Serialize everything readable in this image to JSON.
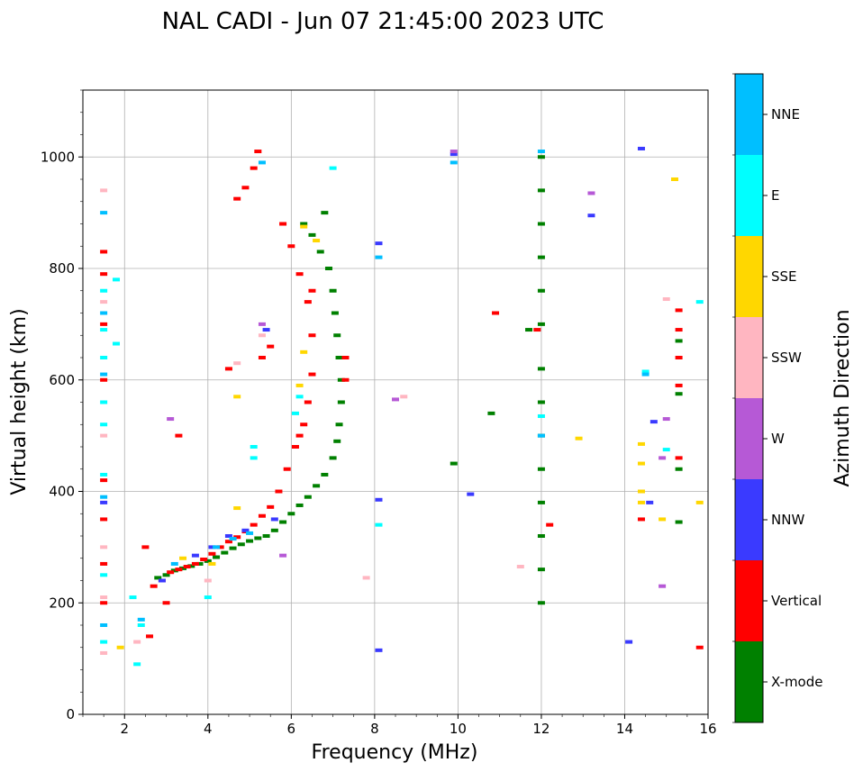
{
  "chart_data": {
    "type": "scatter",
    "title": "NAL CADI - Jun 07 21:45:00 2023 UTC",
    "xlabel": "Frequency (MHz)",
    "ylabel": "Virtual height (km)",
    "xlim": [
      1,
      16
    ],
    "ylim": [
      0,
      1120
    ],
    "xticks": [
      "2",
      "4",
      "6",
      "8",
      "10",
      "12",
      "14",
      "16"
    ],
    "yticks": [
      "0",
      "200",
      "400",
      "600",
      "800",
      "1000"
    ],
    "grid": true,
    "colorbar": {
      "title": "Azimuth Direction",
      "categories": [
        {
          "name": "X-mode",
          "color": "#008000"
        },
        {
          "name": "Vertical",
          "color": "#ff0000"
        },
        {
          "name": "NNW",
          "color": "#3a3aff"
        },
        {
          "name": "W",
          "color": "#b659d6"
        },
        {
          "name": "SSW",
          "color": "#ffb6c1"
        },
        {
          "name": "SSE",
          "color": "#ffd700"
        },
        {
          "name": "E",
          "color": "#00ffff"
        },
        {
          "name": "NNE",
          "color": "#00bfff"
        }
      ]
    },
    "series": [
      {
        "name": "X-mode",
        "points": [
          [
            2.8,
            245
          ],
          [
            3.0,
            250
          ],
          [
            3.2,
            258
          ],
          [
            3.4,
            262
          ],
          [
            3.6,
            266
          ],
          [
            3.8,
            270
          ],
          [
            4.0,
            275
          ],
          [
            4.2,
            282
          ],
          [
            4.4,
            290
          ],
          [
            4.6,
            298
          ],
          [
            4.8,
            305
          ],
          [
            5.0,
            311
          ],
          [
            5.2,
            316
          ],
          [
            5.4,
            320
          ],
          [
            5.6,
            330
          ],
          [
            5.8,
            345
          ],
          [
            6.0,
            360
          ],
          [
            6.2,
            375
          ],
          [
            6.4,
            390
          ],
          [
            6.6,
            410
          ],
          [
            6.8,
            430
          ],
          [
            7.0,
            460
          ],
          [
            7.1,
            490
          ],
          [
            7.15,
            520
          ],
          [
            7.2,
            560
          ],
          [
            7.2,
            600
          ],
          [
            7.15,
            640
          ],
          [
            7.1,
            680
          ],
          [
            7.05,
            720
          ],
          [
            7.0,
            760
          ],
          [
            6.9,
            800
          ],
          [
            6.7,
            830
          ],
          [
            6.5,
            860
          ],
          [
            6.3,
            880
          ],
          [
            6.8,
            900
          ],
          [
            12.0,
            200
          ],
          [
            12.0,
            260
          ],
          [
            12.0,
            320
          ],
          [
            12.0,
            380
          ],
          [
            12.0,
            440
          ],
          [
            12.0,
            500
          ],
          [
            12.0,
            560
          ],
          [
            12.0,
            620
          ],
          [
            12.0,
            700
          ],
          [
            12.0,
            760
          ],
          [
            12.0,
            820
          ],
          [
            12.0,
            880
          ],
          [
            12.0,
            940
          ],
          [
            12.0,
            1000
          ],
          [
            9.9,
            450
          ],
          [
            10.8,
            540
          ],
          [
            11.7,
            690
          ],
          [
            15.3,
            345
          ],
          [
            15.3,
            440
          ],
          [
            15.3,
            575
          ],
          [
            15.3,
            670
          ]
        ]
      },
      {
        "name": "Vertical",
        "points": [
          [
            1.5,
            200
          ],
          [
            1.5,
            270
          ],
          [
            1.5,
            350
          ],
          [
            1.5,
            420
          ],
          [
            1.5,
            600
          ],
          [
            1.5,
            700
          ],
          [
            1.5,
            790
          ],
          [
            1.5,
            830
          ],
          [
            2.6,
            140
          ],
          [
            2.7,
            230
          ],
          [
            2.9,
            240
          ],
          [
            3.1,
            255
          ],
          [
            3.3,
            260
          ],
          [
            3.5,
            265
          ],
          [
            3.7,
            270
          ],
          [
            3.9,
            278
          ],
          [
            4.1,
            288
          ],
          [
            4.3,
            300
          ],
          [
            4.5,
            310
          ],
          [
            4.7,
            318
          ],
          [
            4.9,
            328
          ],
          [
            5.1,
            340
          ],
          [
            5.3,
            356
          ],
          [
            5.5,
            372
          ],
          [
            5.7,
            400
          ],
          [
            5.9,
            440
          ],
          [
            6.1,
            480
          ],
          [
            6.3,
            520
          ],
          [
            6.4,
            560
          ],
          [
            6.5,
            610
          ],
          [
            6.5,
            680
          ],
          [
            6.4,
            740
          ],
          [
            6.2,
            790
          ],
          [
            6.0,
            840
          ],
          [
            5.8,
            880
          ],
          [
            5.5,
            660
          ],
          [
            5.3,
            640
          ],
          [
            4.7,
            925
          ],
          [
            4.9,
            945
          ],
          [
            5.1,
            980
          ],
          [
            5.2,
            1010
          ],
          [
            3.3,
            500
          ],
          [
            2.5,
            300
          ],
          [
            3.0,
            200
          ],
          [
            4.5,
            620
          ],
          [
            7.3,
            640
          ],
          [
            7.3,
            600
          ],
          [
            6.5,
            760
          ],
          [
            6.2,
            500
          ],
          [
            10.9,
            720
          ],
          [
            11.9,
            690
          ],
          [
            12.2,
            340
          ],
          [
            14.4,
            350
          ],
          [
            15.3,
            460
          ],
          [
            15.3,
            590
          ],
          [
            15.3,
            640
          ],
          [
            15.3,
            690
          ],
          [
            15.3,
            725
          ],
          [
            15.8,
            120
          ]
        ]
      },
      {
        "name": "NNW",
        "points": [
          [
            1.5,
            380
          ],
          [
            2.9,
            240
          ],
          [
            3.7,
            285
          ],
          [
            4.1,
            300
          ],
          [
            4.5,
            320
          ],
          [
            4.9,
            330
          ],
          [
            5.6,
            350
          ],
          [
            5.4,
            690
          ],
          [
            8.1,
            115
          ],
          [
            8.1,
            385
          ],
          [
            8.1,
            845
          ],
          [
            9.9,
            1005
          ],
          [
            10.3,
            395
          ],
          [
            13.2,
            895
          ],
          [
            14.1,
            130
          ],
          [
            14.4,
            1015
          ],
          [
            14.6,
            380
          ],
          [
            14.7,
            525
          ]
        ]
      },
      {
        "name": "W",
        "points": [
          [
            3.1,
            530
          ],
          [
            5.3,
            700
          ],
          [
            5.8,
            285
          ],
          [
            8.5,
            565
          ],
          [
            9.9,
            1010
          ],
          [
            13.2,
            935
          ],
          [
            14.9,
            230
          ],
          [
            14.9,
            460
          ],
          [
            15.0,
            530
          ]
        ]
      },
      {
        "name": "SSW",
        "points": [
          [
            1.5,
            110
          ],
          [
            1.5,
            210
          ],
          [
            1.5,
            300
          ],
          [
            1.5,
            500
          ],
          [
            1.5,
            740
          ],
          [
            1.5,
            940
          ],
          [
            2.3,
            130
          ],
          [
            4.0,
            240
          ],
          [
            4.7,
            630
          ],
          [
            5.3,
            680
          ],
          [
            7.8,
            245
          ],
          [
            8.7,
            570
          ],
          [
            11.5,
            265
          ],
          [
            15.0,
            745
          ]
        ]
      },
      {
        "name": "SSE",
        "points": [
          [
            1.9,
            120
          ],
          [
            3.4,
            280
          ],
          [
            4.1,
            270
          ],
          [
            4.7,
            370
          ],
          [
            4.7,
            570
          ],
          [
            6.2,
            590
          ],
          [
            6.3,
            650
          ],
          [
            6.3,
            875
          ],
          [
            6.6,
            850
          ],
          [
            12.9,
            495
          ],
          [
            14.4,
            380
          ],
          [
            14.4,
            400
          ],
          [
            14.4,
            450
          ],
          [
            14.4,
            485
          ],
          [
            14.9,
            350
          ],
          [
            15.2,
            960
          ],
          [
            15.8,
            380
          ]
        ]
      },
      {
        "name": "E",
        "points": [
          [
            1.5,
            130
          ],
          [
            1.5,
            250
          ],
          [
            1.5,
            430
          ],
          [
            1.5,
            520
          ],
          [
            1.5,
            560
          ],
          [
            1.5,
            640
          ],
          [
            1.5,
            690
          ],
          [
            1.5,
            760
          ],
          [
            1.8,
            780
          ],
          [
            1.8,
            665
          ],
          [
            2.3,
            90
          ],
          [
            2.4,
            160
          ],
          [
            2.2,
            210
          ],
          [
            4.0,
            210
          ],
          [
            5.1,
            460
          ],
          [
            5.1,
            480
          ],
          [
            6.2,
            570
          ],
          [
            6.1,
            540
          ],
          [
            7.0,
            980
          ],
          [
            8.1,
            340
          ],
          [
            12.0,
            535
          ],
          [
            14.5,
            615
          ],
          [
            15.0,
            475
          ],
          [
            15.8,
            740
          ]
        ]
      },
      {
        "name": "NNE",
        "points": [
          [
            1.5,
            160
          ],
          [
            1.5,
            390
          ],
          [
            1.5,
            610
          ],
          [
            1.5,
            720
          ],
          [
            1.5,
            900
          ],
          [
            2.4,
            170
          ],
          [
            3.2,
            270
          ],
          [
            4.2,
            300
          ],
          [
            4.6,
            315
          ],
          [
            5.0,
            325
          ],
          [
            5.3,
            990
          ],
          [
            8.1,
            820
          ],
          [
            9.9,
            990
          ],
          [
            12.0,
            1010
          ],
          [
            12.0,
            500
          ],
          [
            14.5,
            610
          ]
        ]
      }
    ]
  }
}
